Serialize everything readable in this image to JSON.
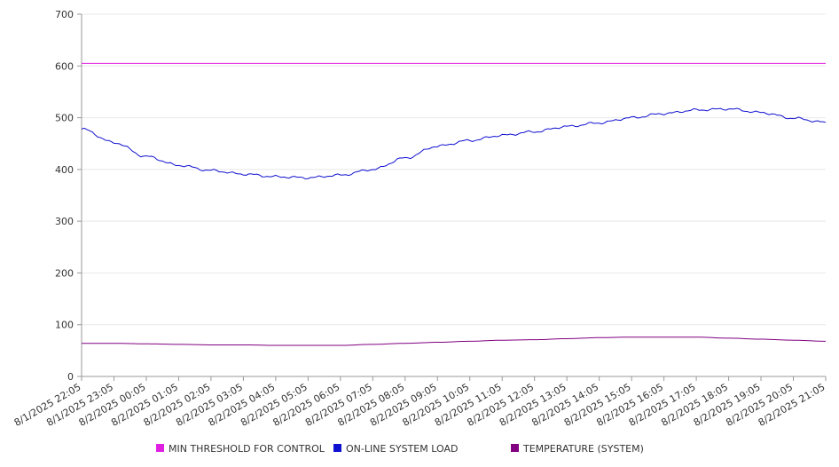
{
  "chart_data": {
    "type": "line",
    "title": "",
    "xlabel": "",
    "ylabel": "",
    "ylim": [
      0,
      700
    ],
    "yticks": [
      0,
      100,
      200,
      300,
      400,
      500,
      600,
      700
    ],
    "grid": true,
    "legend_placement": "bottom",
    "x_categories": [
      "8/1/2025 22:05",
      "8/1/2025 23:05",
      "8/2/2025 00:05",
      "8/2/2025 01:05",
      "8/2/2025 02:05",
      "8/2/2025 03:05",
      "8/2/2025 04:05",
      "8/2/2025 05:05",
      "8/2/2025 06:05",
      "8/2/2025 07:05",
      "8/2/2025 08:05",
      "8/2/2025 09:05",
      "8/2/2025 10:05",
      "8/2/2025 11:05",
      "8/2/2025 12:05",
      "8/2/2025 13:05",
      "8/2/2025 14:05",
      "8/2/2025 15:05",
      "8/2/2025 16:05",
      "8/2/2025 17:05",
      "8/2/2025 18:05",
      "8/2/2025 19:05",
      "8/2/2025 20:05",
      "8/2/2025 21:05"
    ],
    "series": [
      {
        "name": "MIN THRESHOLD FOR CONTROL",
        "color": "#e020e0",
        "values": [
          605,
          605,
          605,
          605,
          605,
          605,
          605,
          605,
          605,
          605,
          605,
          605,
          605,
          605,
          605,
          605,
          605,
          605,
          605,
          605,
          605,
          605,
          605,
          605
        ]
      },
      {
        "name": "ON-LINE SYSTEM LOAD",
        "color": "#1010d0",
        "values": [
          478,
          452,
          425,
          408,
          398,
          391,
          386,
          384,
          389,
          400,
          422,
          445,
          456,
          466,
          473,
          483,
          490,
          500,
          508,
          515,
          517,
          510,
          499,
          491
        ]
      },
      {
        "name": "TEMPERATURE (SYSTEM)",
        "color": "#800080",
        "values": [
          64,
          64,
          63,
          62,
          61,
          61,
          60,
          60,
          60,
          62,
          64,
          66,
          68,
          70,
          71,
          73,
          75,
          76,
          76,
          76,
          74,
          72,
          70,
          68
        ]
      }
    ]
  }
}
